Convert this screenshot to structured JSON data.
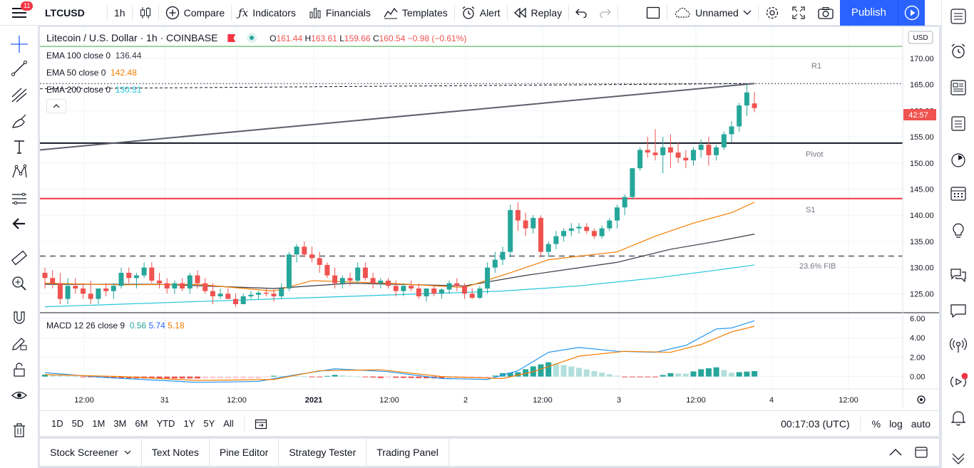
{
  "toolbar": {
    "symbol": "LTCUSD",
    "interval": "1h",
    "compare": "Compare",
    "indicators": "Indicators",
    "financials": "Financials",
    "templates": "Templates",
    "alert": "Alert",
    "replay": "Replay",
    "layout_name": "Unnamed",
    "publish": "Publish",
    "notification_count": "11"
  },
  "legend": {
    "title": "Litecoin / U.S. Dollar · 1h · COINBASE",
    "o_label": "O",
    "o": "161.44",
    "h_label": "H",
    "h": "163.61",
    "l_label": "L",
    "l": "159.66",
    "c_label": "C",
    "c": "160.54",
    "change": "−0.98 (−0.61%)"
  },
  "indicators": [
    {
      "name": "EMA 100 close 0",
      "value": "136.44",
      "color": "#363a45"
    },
    {
      "name": "EMA 50 close 0",
      "value": "142.48",
      "color": "#f57c00"
    },
    {
      "name": "EMA 200 close 0",
      "value": "130.51",
      "color": "#26c6da"
    }
  ],
  "macd": {
    "name": "MACD 12 26 close 9",
    "v1": "0.56",
    "v2": "5.74",
    "v3": "5.18",
    "c1": "#26a69a",
    "c2": "#2962ff",
    "c3": "#f57c00"
  },
  "currency": "USD",
  "price_axis": [
    "170.00",
    "165.00",
    "160.00",
    "155.00",
    "150.00",
    "145.00",
    "140.00",
    "135.00",
    "130.00",
    "125.00"
  ],
  "macd_axis": [
    "6.00",
    "4.00",
    "2.00",
    "0.00"
  ],
  "countdown": "42:57",
  "levels": {
    "r1": "R1",
    "pivot": "Pivot",
    "s1": "S1",
    "fib": "23.6% FIB"
  },
  "time_axis": [
    "12:00",
    "31",
    "12:00",
    "2021",
    "12:00",
    "2",
    "12:00",
    "3",
    "12:00",
    "4",
    "12:00"
  ],
  "ranges": [
    "1D",
    "5D",
    "1M",
    "3M",
    "6M",
    "YTD",
    "1Y",
    "5Y",
    "All"
  ],
  "clock": "00:17:03 (UTC)",
  "scale_opts": [
    "%",
    "log",
    "auto"
  ],
  "panel_tabs": [
    "Stock Screener",
    "Text Notes",
    "Pine Editor",
    "Strategy Tester",
    "Trading Panel"
  ],
  "colors": {
    "up": "#26a69a",
    "down": "#ef5350",
    "accent": "#2962ff"
  },
  "chart_data": {
    "type": "candlestick",
    "ylim": [
      121.5,
      176
    ],
    "hlines": {
      "r1": 172.3,
      "pivot": 153.8,
      "s1": 143.2,
      "fib": 132.2
    },
    "ohlc": [
      [
        129,
        130,
        126,
        128
      ],
      [
        128,
        129.5,
        126,
        127
      ],
      [
        127,
        129,
        123,
        124
      ],
      [
        124,
        128,
        123,
        126.5
      ],
      [
        126.5,
        128,
        125,
        126
      ],
      [
        126,
        127,
        124,
        125
      ],
      [
        125,
        127.5,
        123,
        124
      ],
      [
        124,
        126,
        123,
        126
      ],
      [
        126,
        127,
        124.5,
        125.5
      ],
      [
        125.5,
        127,
        124,
        126.5
      ],
      [
        126.5,
        130,
        126,
        129
      ],
      [
        129,
        130,
        127,
        128
      ],
      [
        128,
        129,
        126,
        128.5
      ],
      [
        128.5,
        131,
        128,
        130
      ],
      [
        130,
        131,
        127,
        127.5
      ],
      [
        127.5,
        129,
        126,
        127
      ],
      [
        127,
        128,
        125,
        126
      ],
      [
        126,
        127.5,
        125,
        127
      ],
      [
        127,
        128,
        125.5,
        126
      ],
      [
        126,
        129,
        125,
        128.5
      ],
      [
        128.5,
        129.5,
        126,
        127
      ],
      [
        127,
        128,
        125,
        125.5
      ],
      [
        125.5,
        127,
        123,
        124.5
      ],
      [
        124.5,
        126,
        124,
        125
      ],
      [
        125,
        126,
        124,
        124
      ],
      [
        124,
        125,
        122.5,
        123
      ],
      [
        123,
        125,
        123,
        124.5
      ],
      [
        124.5,
        125.5,
        124,
        124.8
      ],
      [
        124.8,
        125.5,
        124,
        125.2
      ],
      [
        125.2,
        126,
        124.5,
        125
      ],
      [
        125,
        126,
        123.5,
        124.5
      ],
      [
        124.5,
        127,
        124,
        126
      ],
      [
        126,
        133,
        125.5,
        132.5
      ],
      [
        132.5,
        134.5,
        131,
        134
      ],
      [
        134,
        135,
        132,
        132.5
      ],
      [
        132.5,
        134,
        131,
        131.8
      ],
      [
        131.8,
        133,
        129,
        130.5
      ],
      [
        130.5,
        131,
        128,
        128.5
      ],
      [
        128.5,
        130,
        126,
        127
      ],
      [
        127,
        128.5,
        126,
        128
      ],
      [
        128,
        129,
        126.5,
        127.5
      ],
      [
        127.5,
        131,
        127,
        130
      ],
      [
        130,
        131,
        127.5,
        128
      ],
      [
        128,
        129,
        126,
        127
      ],
      [
        127,
        128,
        126,
        127.5
      ],
      [
        127.5,
        128,
        126,
        126.5
      ],
      [
        126.5,
        127.5,
        124.5,
        125.5
      ],
      [
        125.5,
        127,
        124.5,
        126.5
      ],
      [
        126.5,
        127.5,
        125.5,
        126
      ],
      [
        126,
        127,
        124,
        124.5
      ],
      [
        124.5,
        126,
        123.5,
        126
      ],
      [
        126,
        126.5,
        124.5,
        125
      ],
      [
        125,
        126,
        124,
        125.8
      ],
      [
        125.8,
        127.5,
        125,
        127
      ],
      [
        127,
        128,
        125.5,
        126.5
      ],
      [
        126.5,
        127,
        124,
        125
      ],
      [
        125,
        126,
        124,
        124.2
      ],
      [
        124.2,
        126.5,
        124,
        126
      ],
      [
        126,
        131,
        125,
        130
      ],
      [
        130,
        133,
        129,
        131.5
      ],
      [
        131.5,
        134,
        130.5,
        133
      ],
      [
        133,
        142,
        132,
        141
      ],
      [
        141,
        142.5,
        137,
        139
      ],
      [
        139,
        140.5,
        136,
        137.5
      ],
      [
        137.5,
        140,
        136.5,
        139.5
      ],
      [
        139.5,
        140,
        132,
        133
      ],
      [
        133,
        135,
        132,
        134.5
      ],
      [
        134.5,
        137,
        133.5,
        136
      ],
      [
        136,
        137.5,
        135,
        137
      ],
      [
        137,
        138.5,
        136,
        137.5
      ],
      [
        137.5,
        138.5,
        136.5,
        137.8
      ],
      [
        137.8,
        138.5,
        136.5,
        137
      ],
      [
        137,
        137.5,
        135.5,
        136
      ],
      [
        136,
        138,
        135.5,
        137.5
      ],
      [
        137.5,
        139.5,
        137,
        139
      ],
      [
        139,
        142,
        137.5,
        141.5
      ],
      [
        141.5,
        144,
        140,
        143.5
      ],
      [
        143.5,
        149,
        143,
        149
      ],
      [
        149,
        153,
        148.5,
        152.5
      ],
      [
        152.5,
        155,
        151,
        152
      ],
      [
        152,
        156.5,
        150.5,
        151.5
      ],
      [
        151.5,
        155,
        148,
        153
      ],
      [
        153,
        155.5,
        149,
        152
      ],
      [
        152,
        154,
        150,
        151
      ],
      [
        151,
        152.5,
        149,
        150.5
      ],
      [
        150.5,
        153,
        149.5,
        152.5
      ],
      [
        152.5,
        154.5,
        151,
        153.5
      ],
      [
        153.5,
        155,
        149.5,
        151.5
      ],
      [
        151.5,
        153.5,
        150.5,
        153
      ],
      [
        153,
        156,
        152.5,
        155.5
      ],
      [
        155.5,
        158,
        154,
        157
      ],
      [
        157,
        161.5,
        156,
        161
      ],
      [
        161,
        165,
        159,
        163.5
      ],
      [
        161.4,
        163.6,
        159.7,
        160.5
      ]
    ],
    "ema50": [
      [
        0,
        127
      ],
      [
        10,
        126.7
      ],
      [
        20,
        126.8
      ],
      [
        30,
        125.5
      ],
      [
        35,
        127.5
      ],
      [
        45,
        127
      ],
      [
        55,
        126.2
      ],
      [
        61,
        129
      ],
      [
        66,
        131.5
      ],
      [
        75,
        133
      ],
      [
        80,
        136
      ],
      [
        85,
        138.5
      ],
      [
        90,
        140.5
      ],
      [
        93,
        142.5
      ]
    ],
    "ema100": [
      [
        0,
        126.8
      ],
      [
        15,
        126.8
      ],
      [
        30,
        126
      ],
      [
        40,
        127
      ],
      [
        55,
        126.5
      ],
      [
        63,
        128.5
      ],
      [
        75,
        131
      ],
      [
        82,
        133.5
      ],
      [
        88,
        135
      ],
      [
        93,
        136.4
      ]
    ],
    "ema200": [
      [
        0,
        122.5
      ],
      [
        20,
        123.5
      ],
      [
        40,
        124.5
      ],
      [
        60,
        125.5
      ],
      [
        70,
        126.5
      ],
      [
        80,
        128
      ],
      [
        88,
        129.5
      ],
      [
        93,
        130.5
      ]
    ],
    "trendline": [
      [
        0,
        152.5
      ],
      [
        93,
        165.2
      ]
    ],
    "macd_line": [
      [
        0,
        0.4
      ],
      [
        8,
        -0.1
      ],
      [
        20,
        -0.6
      ],
      [
        28,
        -0.5
      ],
      [
        33,
        0.2
      ],
      [
        38,
        0.8
      ],
      [
        45,
        0.5
      ],
      [
        52,
        -0.2
      ],
      [
        58,
        -0.3
      ],
      [
        62,
        0.6
      ],
      [
        66,
        2.5
      ],
      [
        70,
        3.0
      ],
      [
        75,
        2.6
      ],
      [
        80,
        2.5
      ],
      [
        84,
        3.2
      ],
      [
        88,
        4.9
      ],
      [
        90,
        5.0
      ],
      [
        93,
        5.74
      ]
    ],
    "signal_line": [
      [
        0,
        0.2
      ],
      [
        10,
        0.0
      ],
      [
        20,
        -0.4
      ],
      [
        30,
        -0.3
      ],
      [
        36,
        0.6
      ],
      [
        44,
        0.7
      ],
      [
        52,
        0.0
      ],
      [
        60,
        -0.2
      ],
      [
        64,
        0.5
      ],
      [
        70,
        2.1
      ],
      [
        76,
        2.6
      ],
      [
        82,
        2.5
      ],
      [
        86,
        3.3
      ],
      [
        90,
        4.6
      ],
      [
        93,
        5.18
      ]
    ],
    "macd_ylim": [
      -1.2,
      6.5
    ]
  }
}
